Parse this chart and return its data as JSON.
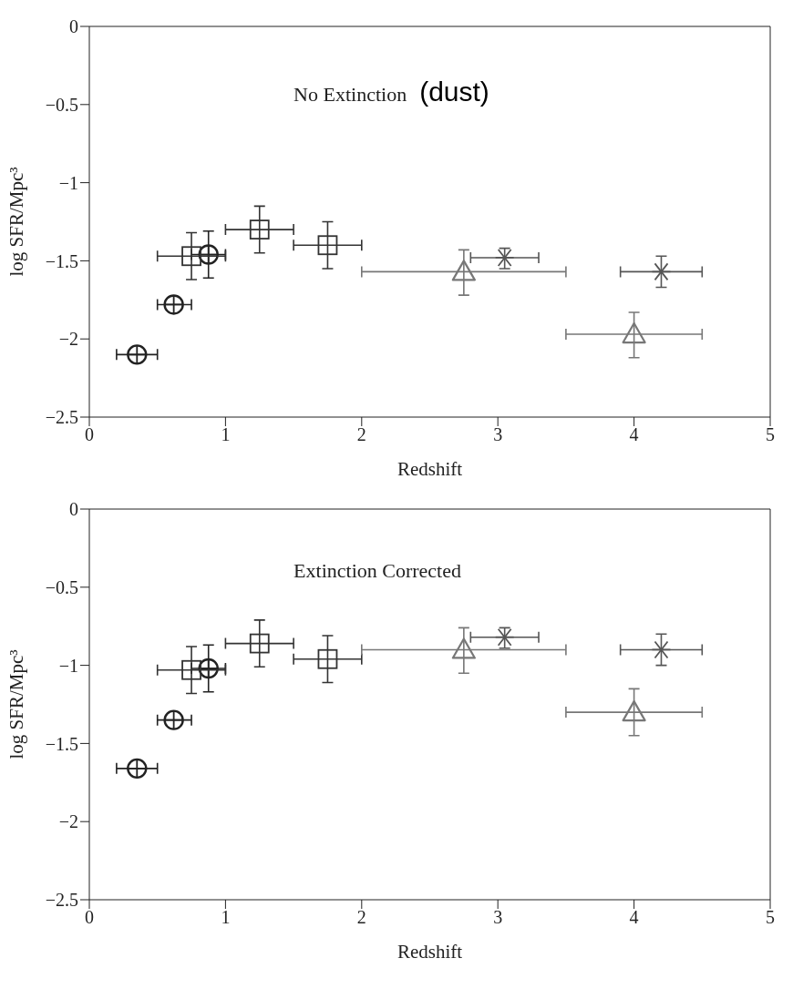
{
  "chart_data": [
    {
      "type": "scatter",
      "title": "No Extinction",
      "xlabel": "Redshift",
      "ylabel": "log SFR/Mpc³",
      "xlim": [
        0,
        5
      ],
      "xticks": [
        0,
        1,
        2,
        3,
        4,
        5
      ],
      "ylim": [
        -2.5,
        0
      ],
      "yticks": [
        -2.5,
        -2,
        -1.5,
        -1,
        -0.5,
        0
      ],
      "grid": false,
      "legend": false,
      "annotations": [
        "(dust)"
      ],
      "series": [
        {
          "marker": "circle",
          "color": "#222222",
          "x": [
            0.35,
            0.62,
            0.875
          ],
          "values": [
            -2.1,
            -1.78,
            -1.46
          ],
          "errors": [
            null,
            null,
            [
              -1.61,
              -1.31
            ]
          ],
          "xerrors": [
            [
              0.2,
              0.5
            ],
            [
              0.5,
              0.75
            ],
            [
              0.75,
              1.0
            ]
          ]
        },
        {
          "marker": "square",
          "color": "#333333",
          "x": [
            0.75,
            1.25,
            1.75
          ],
          "values": [
            -1.47,
            -1.3,
            -1.4
          ],
          "errors": [
            [
              -1.62,
              -1.32
            ],
            [
              -1.45,
              -1.15
            ],
            [
              -1.55,
              -1.25
            ]
          ],
          "xerrors": [
            [
              0.5,
              1.0
            ],
            [
              1.0,
              1.5
            ],
            [
              1.5,
              2.0
            ]
          ]
        },
        {
          "marker": "triangle",
          "color": "#777777",
          "x": [
            2.75,
            4.0
          ],
          "values": [
            -1.57,
            -1.97
          ],
          "errors": [
            [
              -1.72,
              -1.43
            ],
            [
              -2.12,
              -1.83
            ]
          ],
          "xerrors": [
            [
              2.0,
              3.5
            ],
            [
              3.5,
              4.5
            ]
          ]
        },
        {
          "marker": "cross",
          "color": "#555555",
          "x": [
            3.05,
            4.2
          ],
          "values": [
            -1.48,
            -1.57
          ],
          "errors": [
            [
              -1.55,
              -1.42
            ],
            [
              -1.67,
              -1.47
            ]
          ],
          "xerrors": [
            [
              2.8,
              3.3
            ],
            [
              3.9,
              4.5
            ]
          ]
        }
      ]
    },
    {
      "type": "scatter",
      "title": "Extinction Corrected",
      "xlabel": "Redshift",
      "ylabel": "log SFR/Mpc³",
      "xlim": [
        0,
        5
      ],
      "xticks": [
        0,
        1,
        2,
        3,
        4,
        5
      ],
      "ylim": [
        -2.5,
        0
      ],
      "yticks": [
        -2.5,
        -2,
        -1.5,
        -1,
        -0.5,
        0
      ],
      "grid": false,
      "legend": false,
      "series": [
        {
          "marker": "circle",
          "color": "#222222",
          "x": [
            0.35,
            0.62,
            0.875
          ],
          "values": [
            -1.66,
            -1.35,
            -1.02
          ],
          "errors": [
            null,
            null,
            [
              -1.17,
              -0.87
            ]
          ],
          "xerrors": [
            [
              0.2,
              0.5
            ],
            [
              0.5,
              0.75
            ],
            [
              0.75,
              1.0
            ]
          ]
        },
        {
          "marker": "square",
          "color": "#333333",
          "x": [
            0.75,
            1.25,
            1.75
          ],
          "values": [
            -1.03,
            -0.86,
            -0.96
          ],
          "errors": [
            [
              -1.18,
              -0.88
            ],
            [
              -1.01,
              -0.71
            ],
            [
              -1.11,
              -0.81
            ]
          ],
          "xerrors": [
            [
              0.5,
              1.0
            ],
            [
              1.0,
              1.5
            ],
            [
              1.5,
              2.0
            ]
          ]
        },
        {
          "marker": "triangle",
          "color": "#777777",
          "x": [
            2.75,
            4.0
          ],
          "values": [
            -0.9,
            -1.3
          ],
          "errors": [
            [
              -1.05,
              -0.76
            ],
            [
              -1.45,
              -1.15
            ]
          ],
          "xerrors": [
            [
              2.0,
              3.5
            ],
            [
              3.5,
              4.5
            ]
          ]
        },
        {
          "marker": "cross",
          "color": "#555555",
          "x": [
            3.05,
            4.2
          ],
          "values": [
            -0.82,
            -0.9
          ],
          "errors": [
            [
              -0.89,
              -0.76
            ],
            [
              -1.0,
              -0.8
            ]
          ],
          "xerrors": [
            [
              2.8,
              3.3
            ],
            [
              3.9,
              4.5
            ]
          ]
        }
      ]
    }
  ]
}
